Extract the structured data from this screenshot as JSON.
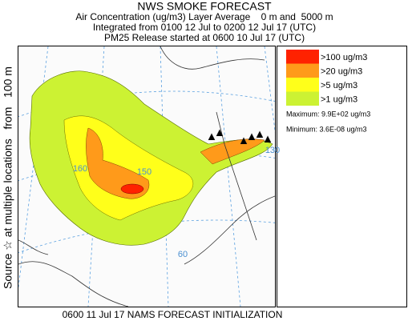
{
  "header": {
    "title": "NWS SMOKE FORECAST",
    "line1": "Air Concentration (ug/m3) Layer Average    0 m and  5000 m",
    "line2": "Integrated from 0100 12 Jul to 0200 12 Jul 17 (UTC)",
    "line3": "PM25 Release started at 0600 10 Jul 17 (UTC)"
  },
  "side_label": "Source ☆ at multiple locations   from   100 m",
  "legend": {
    "items": [
      {
        "label": ">100 ug/m3",
        "color": "#ff2200"
      },
      {
        "label": ">20 ug/m3",
        "color": "#ff9a1a"
      },
      {
        "label": ">5 ug/m3",
        "color": "#ffff1a"
      },
      {
        "label": ">1 ug/m3",
        "color": "#ccf233"
      }
    ],
    "maximum": "Maximum: 9.9E+02 ug/m3",
    "minimum": "Minimum: 3.6E-08 ug/m3"
  },
  "map": {
    "grid_labels": [
      "160",
      "150",
      "130",
      "60"
    ]
  },
  "footer": "0600 11 Jul 17 NAMS FORECAST INITIALIZATION"
}
